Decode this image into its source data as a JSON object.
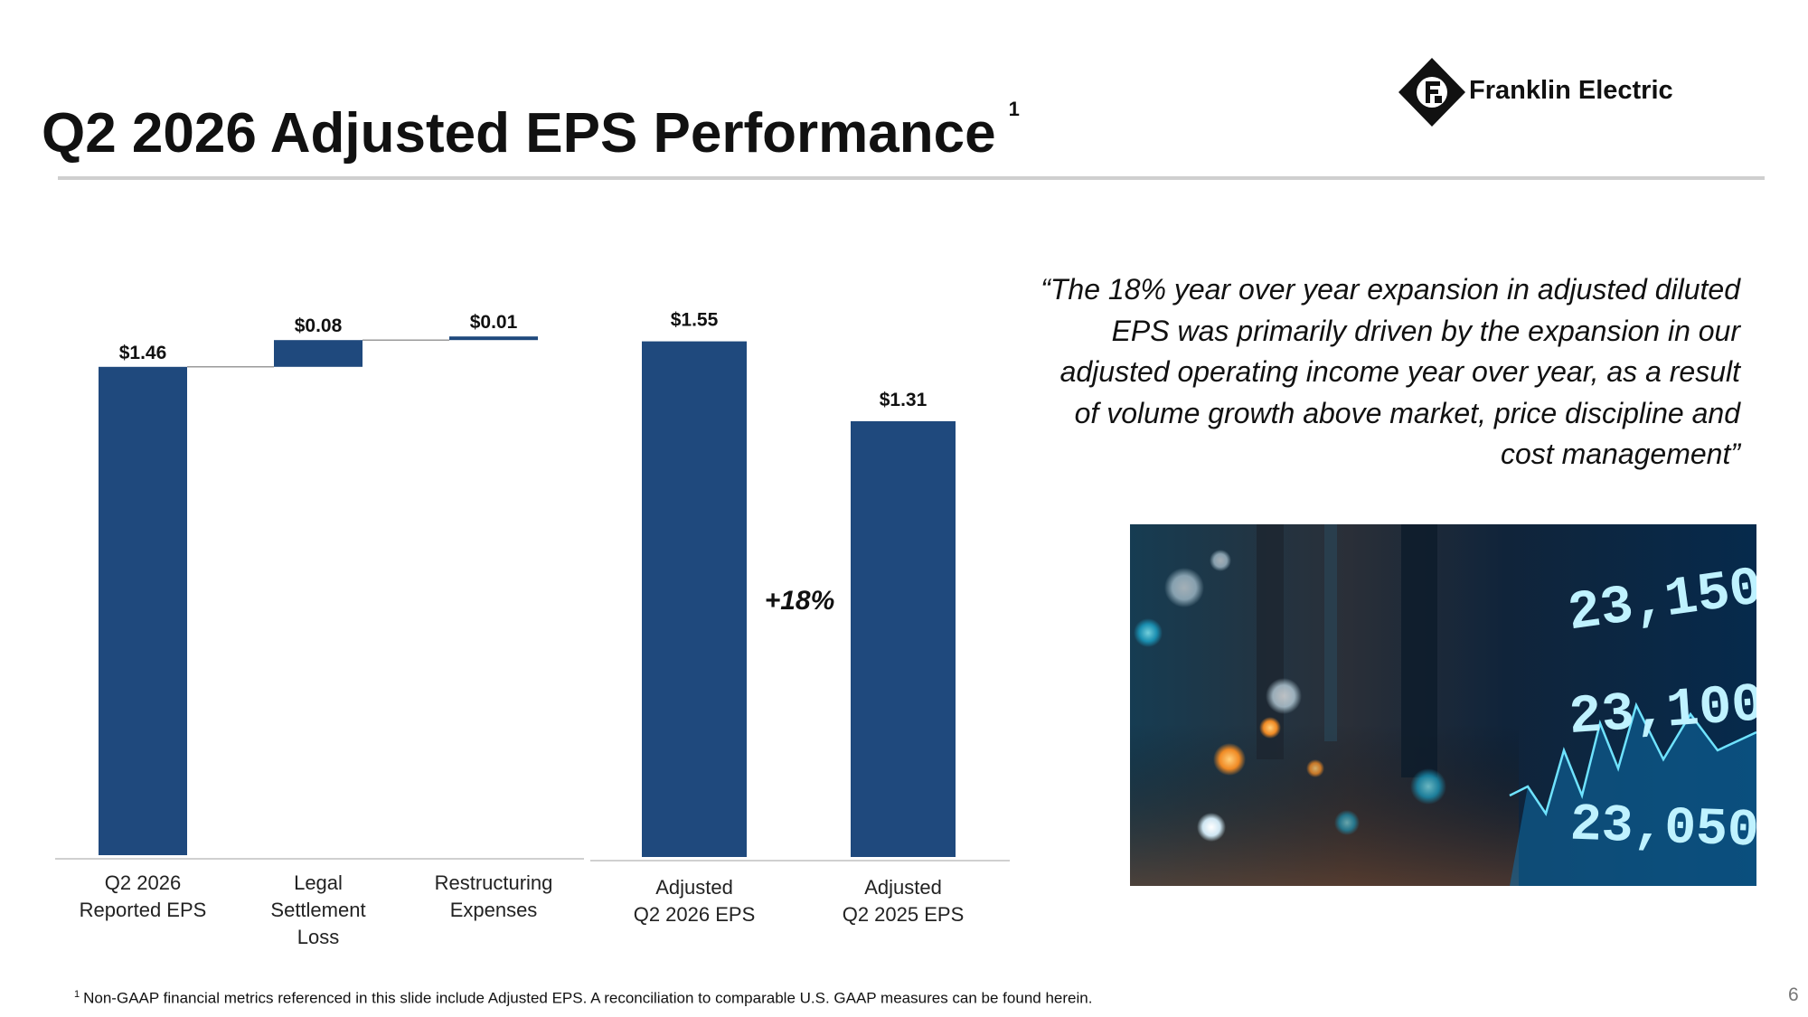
{
  "slide": {
    "title": "Q2 2026 Adjusted EPS Performance",
    "title_superscript": "1",
    "brand": "Franklin Electric",
    "quote": "“The 18% year over year expansion in adjusted diluted EPS was primarily driven by the expansion in our adjusted operating income year over year, as a result of volume growth above market, price discipline and cost management”",
    "footnote_marker": "1",
    "footnote": "Non-GAAP financial metrics referenced in this slide include Adjusted EPS. A reconciliation to comparable U.S. GAAP measures can be found herein.",
    "page_number": "6",
    "photo_numbers": [
      "23,150",
      "23,100",
      "23,050"
    ]
  },
  "colors": {
    "bar": "#1f497d",
    "rule": "#cfcfcf",
    "axis": "#d0d0d0",
    "connector": "#9a9a9a"
  },
  "chart_data": [
    {
      "type": "waterfall",
      "categories": [
        "Q2 2026 Reported EPS",
        "Legal Settlement Loss",
        "Restructuring Expenses"
      ],
      "category_lines": [
        [
          "Q2 2026",
          "Reported EPS"
        ],
        [
          "Legal",
          "Settlement",
          "Loss"
        ],
        [
          "Restructuring",
          "Expenses"
        ]
      ],
      "values": [
        1.46,
        0.08,
        0.01
      ],
      "labels": [
        "$1.46",
        "$0.08",
        "$0.01"
      ],
      "measure": [
        "absolute",
        "relative",
        "relative"
      ],
      "ylim": [
        0,
        1.55
      ]
    },
    {
      "type": "bar",
      "categories": [
        "Adjusted Q2 2026 EPS",
        "Adjusted Q2 2025 EPS"
      ],
      "category_lines": [
        [
          "Adjusted",
          "Q2 2026 EPS"
        ],
        [
          "Adjusted",
          "Q2 2025 EPS"
        ]
      ],
      "values": [
        1.55,
        1.31
      ],
      "labels": [
        "$1.55",
        "$1.31"
      ],
      "annotation": "+18%",
      "ylim": [
        0,
        1.55
      ]
    }
  ]
}
